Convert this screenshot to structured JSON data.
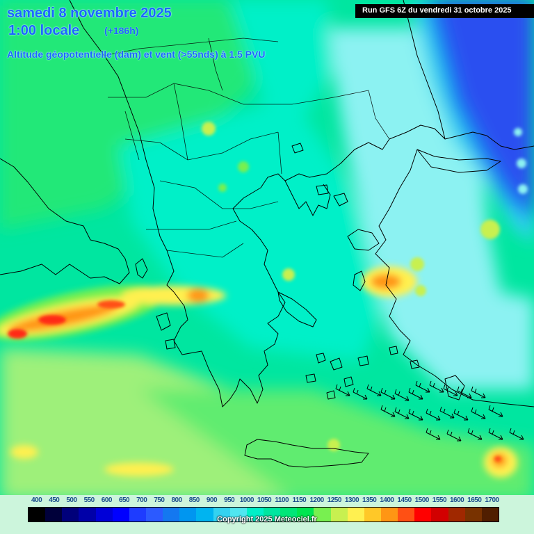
{
  "header": {
    "date": "samedi 8 novembre 2025",
    "time": "1:00 locale",
    "offset": "(+186h)",
    "subtitle": "Altitude géopotentielle (dam) et vent (>55nds) à 1.5 PVU",
    "run": "Run GFS 6Z du vendredi 31 octobre 2025"
  },
  "legend": {
    "levels": [
      "400",
      "450",
      "500",
      "550",
      "600",
      "650",
      "700",
      "750",
      "800",
      "850",
      "900",
      "950",
      "1000",
      "1050",
      "1100",
      "1150",
      "1200",
      "1250",
      "1300",
      "1350",
      "1400",
      "1450",
      "1500",
      "1550",
      "1600",
      "1650",
      "1700"
    ],
    "colors": [
      "#000000",
      "#00003a",
      "#00007a",
      "#0000a8",
      "#0000d8",
      "#0000ff",
      "#1e3cff",
      "#2c5aff",
      "#1478f0",
      "#0096f0",
      "#00b4f0",
      "#33d2f0",
      "#50e6f0",
      "#00f0c8",
      "#00e6a0",
      "#00e678",
      "#00e650",
      "#78f050",
      "#c8f050",
      "#fff050",
      "#ffc828",
      "#ff9614",
      "#ff5014",
      "#ff0000",
      "#d20000",
      "#a02800",
      "#783200",
      "#501e00"
    ]
  },
  "copyright": "Copyright 2025 Meteociel.fr",
  "colors": {
    "title_blue": "#1a66ff",
    "deep_blue": "#2a50f0",
    "light_cyan": "#8cf2f2",
    "sea_green": "#00f0c8",
    "land_green": "#20e878",
    "south_green": "#9ef07a",
    "hotspot_orange": "#ff8c14",
    "hotspot_red": "#ff2a14"
  },
  "map": {
    "projection": "regional-greece-balkans",
    "wind_barbs": 24
  }
}
